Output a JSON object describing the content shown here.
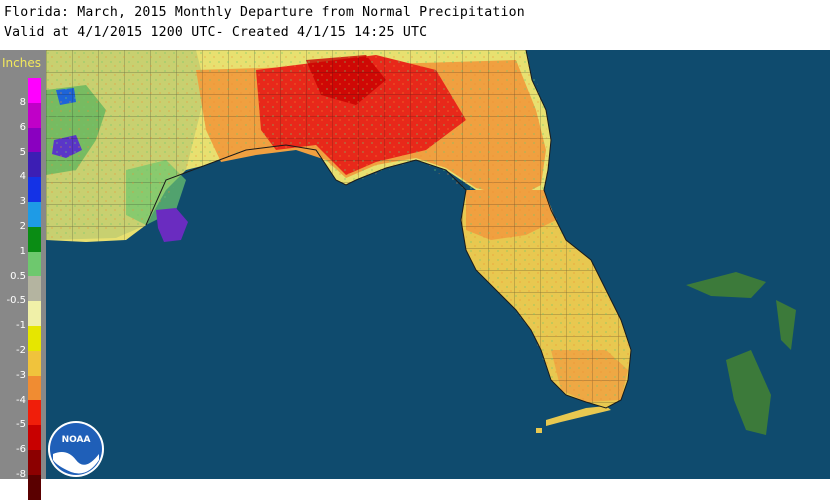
{
  "header": {
    "title": "Florida: March, 2015 Monthly Departure from Normal Precipitation",
    "subtitle": "Valid at 4/1/2015 1200 UTC- Created 4/1/15 14:25 UTC"
  },
  "legend": {
    "title": "Inches",
    "items": [
      {
        "label": "8",
        "color": "#ff00ff"
      },
      {
        "label": "6",
        "color": "#c000c8"
      },
      {
        "label": "5",
        "color": "#8a00c0"
      },
      {
        "label": "4",
        "color": "#3c1eb4"
      },
      {
        "label": "3",
        "color": "#1432e6"
      },
      {
        "label": "2",
        "color": "#1e9be6"
      },
      {
        "label": "1",
        "color": "#0a8c14"
      },
      {
        "label": "0.5",
        "color": "#6ec86e"
      },
      {
        "label": "-0.5",
        "color": "#b4b4a0"
      },
      {
        "label": "-1",
        "color": "#f0f0a8"
      },
      {
        "label": "-2",
        "color": "#e6e600"
      },
      {
        "label": "-3",
        "color": "#f0c33c"
      },
      {
        "label": "-4",
        "color": "#f08c32"
      },
      {
        "label": "-5",
        "color": "#f01e0a"
      },
      {
        "label": "-6",
        "color": "#c80000"
      },
      {
        "label": "-8",
        "color": "#8c0000"
      },
      {
        "label": "",
        "color": "#5a0000"
      }
    ]
  },
  "map": {
    "ocean_color": "#0f4b6e",
    "bahamas_color": "#3c7a3a"
  },
  "logo": {
    "text": "NOAA"
  }
}
